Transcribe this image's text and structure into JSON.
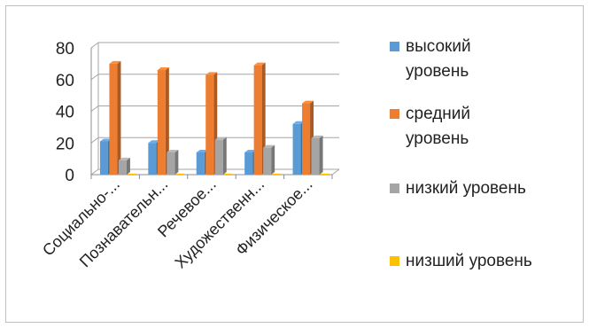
{
  "chart_data": {
    "type": "bar",
    "style": "3d-clustered-column",
    "categories": [
      "Социально-...",
      "Познавательн...",
      "Речевое...",
      "Художественн...",
      "Физическое..."
    ],
    "series": [
      {
        "name": "высокий уровень",
        "color": "#5b9bd5",
        "values": [
          21,
          20,
          14,
          14,
          32
        ]
      },
      {
        "name": "средний уровень",
        "color": "#ed7d31",
        "values": [
          70,
          66,
          63,
          69,
          45
        ]
      },
      {
        "name": "низкий уровень",
        "color": "#a5a5a5",
        "values": [
          9,
          14,
          22,
          17,
          23
        ]
      },
      {
        "name": "низший уровень",
        "color": "#ffc000",
        "values": [
          0,
          0,
          0,
          0,
          0
        ]
      }
    ],
    "yticks": [
      "0",
      "20",
      "40",
      "60",
      "80"
    ],
    "ylim": [
      0,
      80
    ],
    "grid": true,
    "legend_position": "right",
    "title": "",
    "xlabel": "",
    "ylabel": ""
  }
}
